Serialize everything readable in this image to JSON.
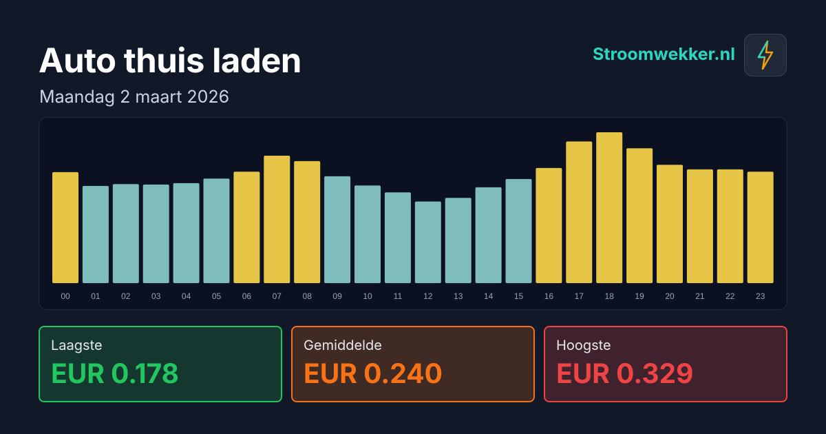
{
  "header": {
    "title": "Auto thuis laden",
    "subtitle": "Maandag 2 maart 2026",
    "brand": "Stroomwekker.nl"
  },
  "chart_data": {
    "type": "bar",
    "categories": [
      "00",
      "01",
      "02",
      "03",
      "04",
      "05",
      "06",
      "07",
      "08",
      "09",
      "10",
      "11",
      "12",
      "13",
      "14",
      "15",
      "16",
      "17",
      "18",
      "19",
      "20",
      "21",
      "22",
      "23"
    ],
    "values": [
      0.242,
      0.212,
      0.216,
      0.215,
      0.218,
      0.228,
      0.243,
      0.278,
      0.266,
      0.233,
      0.213,
      0.198,
      0.178,
      0.186,
      0.209,
      0.227,
      0.251,
      0.309,
      0.329,
      0.294,
      0.258,
      0.248,
      0.248,
      0.243
    ],
    "colors": [
      "#e6c547",
      "#7fbcbc",
      "#7fbcbc",
      "#7fbcbc",
      "#7fbcbc",
      "#7fbcbc",
      "#e6c547",
      "#e6c547",
      "#e6c547",
      "#7fbcbc",
      "#7fbcbc",
      "#7fbcbc",
      "#7fbcbc",
      "#7fbcbc",
      "#7fbcbc",
      "#7fbcbc",
      "#e6c547",
      "#e6c547",
      "#e6c547",
      "#e6c547",
      "#e6c547",
      "#e6c547",
      "#e6c547",
      "#e6c547"
    ]
  },
  "stats": [
    {
      "label": "Laagste",
      "value": "EUR 0.178"
    },
    {
      "label": "Gemiddelde",
      "value": "EUR 0.240"
    },
    {
      "label": "Hoogste",
      "value": "EUR 0.329"
    }
  ]
}
